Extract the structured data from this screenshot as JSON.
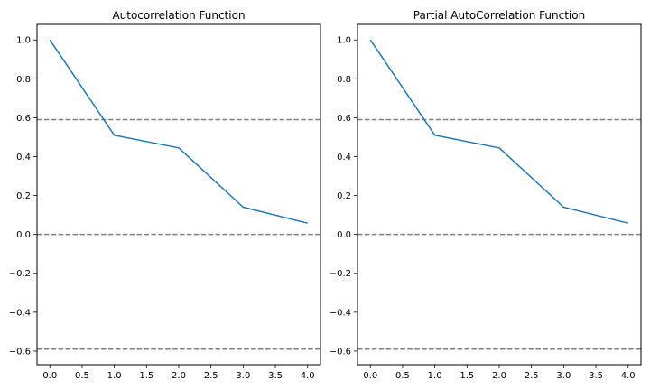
{
  "chart_data": [
    {
      "type": "line",
      "title": "Autocorrelation Function",
      "xlabel": "",
      "ylabel": "",
      "x": [
        0,
        1,
        2,
        3,
        4
      ],
      "series": [
        {
          "values": [
            1.0,
            0.51,
            0.445,
            0.14,
            0.058
          ]
        }
      ],
      "reference_lines": [
        0.59,
        0.0,
        -0.59
      ],
      "xlim": [
        -0.2,
        4.2
      ],
      "ylim": [
        -0.67,
        1.08
      ],
      "xticks": [
        "0.0",
        "0.5",
        "1.0",
        "1.5",
        "2.0",
        "2.5",
        "3.0",
        "3.5",
        "4.0"
      ],
      "yticks": [
        "1.0",
        "0.8",
        "0.6",
        "0.4",
        "0.2",
        "0.0",
        "−0.2",
        "−0.4",
        "−0.6"
      ],
      "grid": false,
      "line_color": "#1f77b4",
      "reference_color": "#808080"
    },
    {
      "type": "line",
      "title": "Partial AutoCorrelation Function",
      "xlabel": "",
      "ylabel": "",
      "x": [
        0,
        1,
        2,
        3,
        4
      ],
      "series": [
        {
          "values": [
            1.0,
            0.51,
            0.445,
            0.14,
            0.058
          ]
        }
      ],
      "reference_lines": [
        0.59,
        0.0,
        -0.59
      ],
      "xlim": [
        -0.2,
        4.2
      ],
      "ylim": [
        -0.67,
        1.08
      ],
      "xticks": [
        "0.0",
        "0.5",
        "1.0",
        "1.5",
        "2.0",
        "2.5",
        "3.0",
        "3.5",
        "4.0"
      ],
      "yticks": [
        "1.0",
        "0.8",
        "0.6",
        "0.4",
        "0.2",
        "0.0",
        "−0.2",
        "−0.4",
        "−0.6"
      ],
      "grid": false,
      "line_color": "#1f77b4",
      "reference_color": "#808080"
    }
  ]
}
